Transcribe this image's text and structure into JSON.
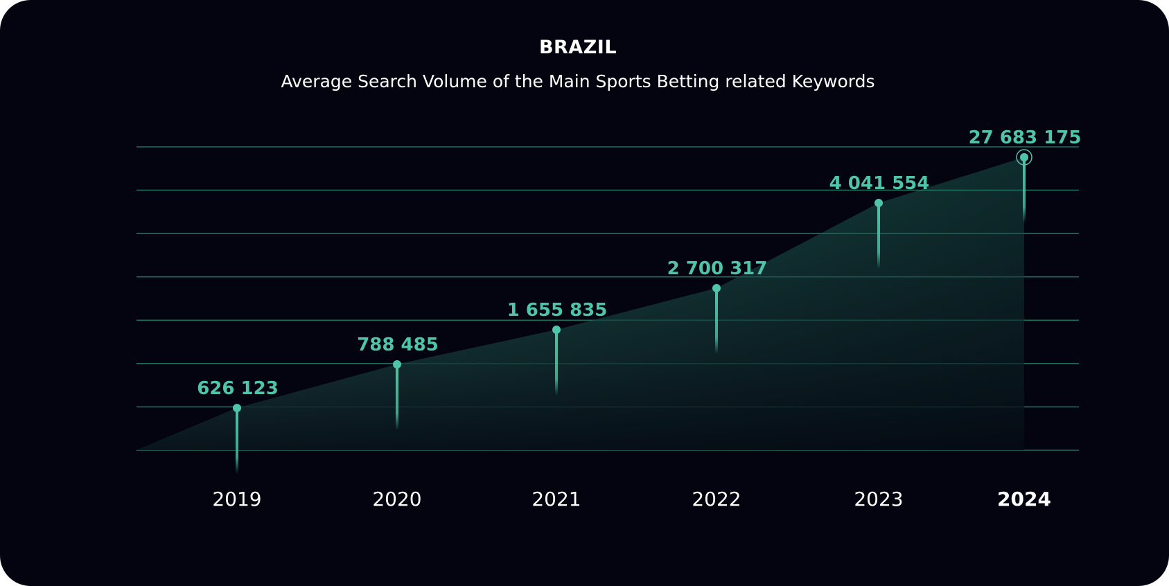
{
  "colors": {
    "background": "#03040f",
    "accent": "#4fc4a8",
    "grid": "#1f6e5a",
    "text": "#ffffff"
  },
  "chart_data": {
    "type": "area",
    "title": "BRAZIL",
    "subtitle": "Average Search Volume of the Main Sports Betting related Keywords",
    "categories": [
      "2019",
      "2020",
      "2021",
      "2022",
      "2023",
      "2024"
    ],
    "values": [
      626123,
      788485,
      1655835,
      2700317,
      4041554,
      27683175
    ],
    "data_labels": [
      "626 123",
      "788 485",
      "1 655 835",
      "2 700 317",
      "4 041 554",
      "27 683 175"
    ],
    "highlighted_category": "2024",
    "y_axis": "not to scale (no y-axis shown)",
    "grid": true,
    "legend": "none"
  }
}
